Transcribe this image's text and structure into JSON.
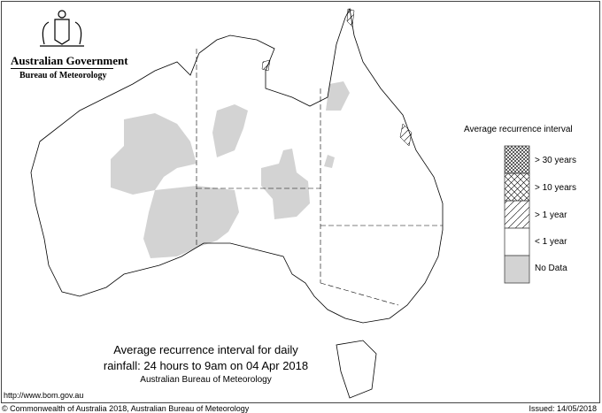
{
  "header": {
    "government": "Australian Government",
    "bureau": "Bureau of Meteorology"
  },
  "map_title": {
    "line1": "Average recurrence interval for daily",
    "line2": "rainfall: 24 hours to 9am on 04 Apr 2018",
    "line3": "Australian Bureau of Meteorology"
  },
  "legend": {
    "title": "Average recurrence interval",
    "items": [
      {
        "label": "> 30 years",
        "pattern": "dense-crosshatch"
      },
      {
        "label": "> 10 years",
        "pattern": "crosshatch"
      },
      {
        "label": "> 1 year",
        "pattern": "diagonal-hatch"
      },
      {
        "label": "< 1 year",
        "pattern": "none",
        "color": "#ffffff"
      },
      {
        "label": "No Data",
        "pattern": "solid",
        "color": "#d3d3d3"
      }
    ]
  },
  "footer": {
    "url": "http://www.bom.gov.au",
    "copyright": "© Commonwealth of Australia 2018, Australian Bureau of Meteorology",
    "issued": "Issued: 14/05/2018"
  }
}
